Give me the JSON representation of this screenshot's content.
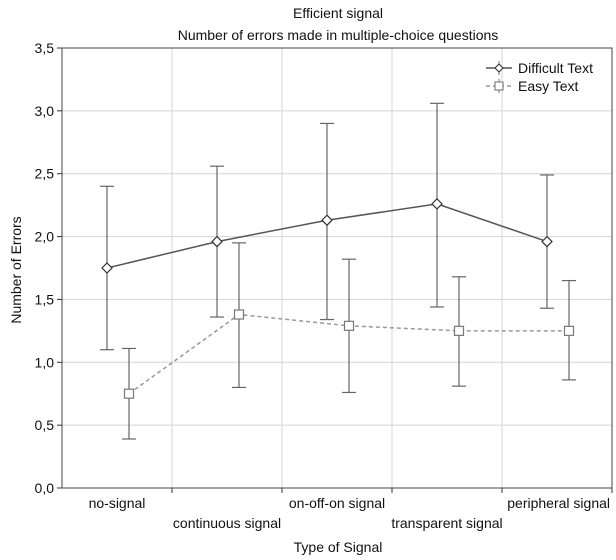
{
  "chart_data": {
    "type": "line",
    "title": "Efficient signal",
    "subtitle": "Number of errors made in multiple-choice questions",
    "xlabel": "Type of Signal",
    "ylabel": "Number of Errors",
    "categories": [
      "no-signal",
      "continuous signal",
      "on-off-on signal",
      "transparent signal",
      "peripheral signal"
    ],
    "ylim": [
      0,
      3.5
    ],
    "yticks": [
      "0,0",
      "0,5",
      "1,0",
      "1,5",
      "2,0",
      "2,5",
      "3,0",
      "3,5"
    ],
    "grid": true,
    "legend_position": "top-right",
    "error_bars": true,
    "series": [
      {
        "name": "Difficult Text",
        "marker": "diamond",
        "line_style": "solid",
        "color": "#555555",
        "values": [
          1.75,
          1.96,
          2.13,
          2.26,
          1.96
        ],
        "lower": [
          1.1,
          1.36,
          1.34,
          1.44,
          1.43
        ],
        "upper": [
          2.4,
          2.56,
          2.9,
          3.06,
          2.49
        ]
      },
      {
        "name": "Easy Text",
        "marker": "square",
        "line_style": "dashed",
        "color": "#999999",
        "values": [
          0.75,
          1.38,
          1.29,
          1.25,
          1.25
        ],
        "lower": [
          0.39,
          0.8,
          0.76,
          0.81,
          0.86
        ],
        "upper": [
          1.11,
          1.95,
          1.82,
          1.68,
          1.65
        ]
      }
    ]
  }
}
